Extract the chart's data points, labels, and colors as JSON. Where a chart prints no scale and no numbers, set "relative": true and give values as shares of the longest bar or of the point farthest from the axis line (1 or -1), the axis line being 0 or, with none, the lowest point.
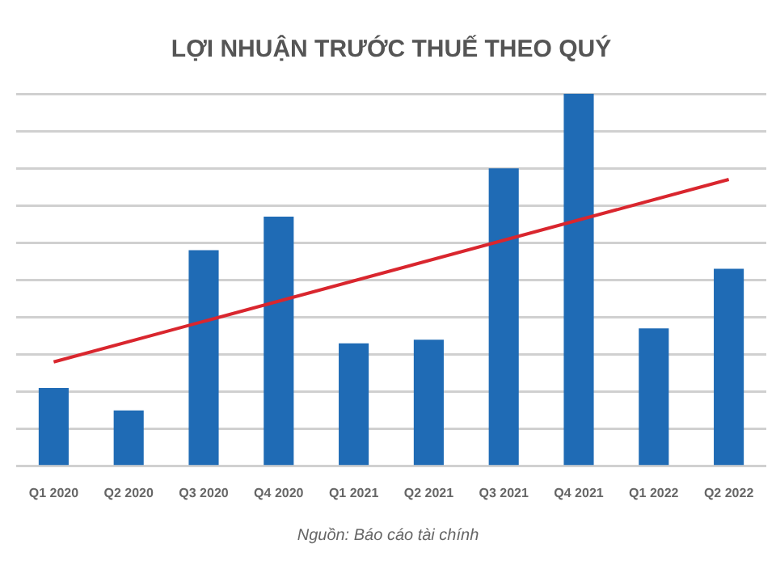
{
  "chart_data": {
    "type": "bar",
    "title": "LỢI NHUẬN TRƯỚC THUẾ THEO QUÝ",
    "relative": true,
    "grid": "y",
    "legend": false,
    "categories": [
      "Q1 2020",
      "Q2 2020",
      "Q3 2020",
      "Q4 2020",
      "Q1 2021",
      "Q2 2021",
      "Q3 2021",
      "Q4 2021",
      "Q1 2022",
      "Q2 2022"
    ],
    "series": [
      {
        "color": "#1f6bb5",
        "values": [
          0.21,
          0.15,
          0.58,
          0.67,
          0.33,
          0.34,
          0.8,
          1,
          0.37,
          0.53
        ]
      },
      {
        "type": "line",
        "color": "#d9262e",
        "values": [
          0.28,
          null,
          null,
          null,
          null,
          null,
          null,
          null,
          null,
          0.77
        ]
      }
    ],
    "annotations": [
      "Nguồn: Báo cáo tài chính"
    ]
  }
}
